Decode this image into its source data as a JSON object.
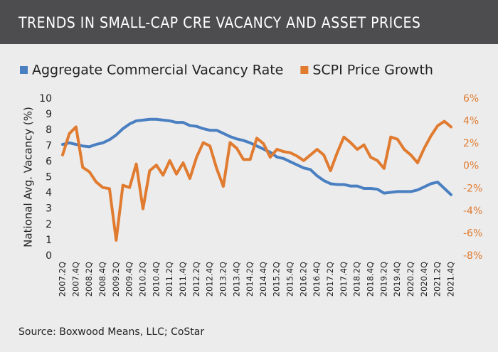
{
  "chart_data": {
    "type": "line",
    "title": "TRENDS IN SMALL-CAP CRE VACANCY AND ASSET PRICES",
    "ylabel": "National Avg. Vacancy (%)",
    "source": "Source: Boxwood Means, LLC; CoStar",
    "categories": [
      "2007.2Q",
      null,
      "2007.4Q",
      null,
      "2008.2Q",
      null,
      "2008.4Q",
      null,
      "2009.2Q",
      null,
      "2009.4Q",
      null,
      "2010.2Q",
      null,
      "2010.4Q",
      null,
      "2011.2Q",
      null,
      "2011.4Q",
      null,
      "2012.2Q",
      null,
      "2012.4Q",
      null,
      "2013.2Q",
      null,
      "2013.4Q",
      null,
      "2014.2Q",
      null,
      "2014.4Q",
      null,
      "2015.2Q",
      null,
      "2015.4Q",
      null,
      "2016.2Q",
      null,
      "2016.4Q",
      null,
      "2017.2Q",
      null,
      "2017.4Q",
      null,
      "2018.2Q",
      null,
      "2018.4Q",
      null,
      "2019.2Q",
      null,
      "2019.4Q",
      null,
      "2020.2Q",
      null,
      "2020.4Q",
      null,
      "2021.2Q",
      null,
      "2021.4Q"
    ],
    "series": [
      {
        "name": "Aggregate Commercial Vacancy Rate",
        "color": "#4a7fc1",
        "values": [
          7.1,
          7.2,
          7.1,
          7.0,
          6.95,
          7.1,
          7.2,
          7.4,
          7.7,
          8.1,
          8.4,
          8.6,
          8.65,
          8.7,
          8.7,
          8.65,
          8.6,
          8.5,
          8.5,
          8.3,
          8.25,
          8.1,
          8.0,
          8.0,
          7.8,
          7.6,
          7.45,
          7.35,
          7.2,
          7.0,
          6.8,
          6.6,
          6.3,
          6.2,
          6.0,
          5.8,
          5.6,
          5.5,
          5.1,
          4.8,
          4.6,
          4.55,
          4.55,
          4.45,
          4.45,
          4.3,
          4.3,
          4.25,
          4.0,
          4.05,
          4.1,
          4.1,
          4.1,
          4.2,
          4.4,
          4.6,
          4.7,
          4.3,
          3.9
        ]
      },
      {
        "name": "SCPI Price Growth",
        "color": "#e07b30",
        "axis": "y2",
        "values": [
          1.0,
          2.9,
          3.5,
          -0.1,
          -0.5,
          -1.4,
          -1.9,
          -2.0,
          -6.6,
          -1.7,
          -1.9,
          0.2,
          -3.8,
          -0.4,
          0.1,
          -0.8,
          0.5,
          -0.7,
          0.3,
          -1.1,
          0.8,
          2.1,
          1.8,
          -0.2,
          -1.8,
          2.1,
          1.6,
          0.6,
          0.6,
          2.5,
          2.0,
          0.8,
          1.5,
          1.3,
          1.2,
          0.9,
          0.5,
          1.0,
          1.5,
          1.0,
          -0.4,
          1.2,
          2.6,
          2.1,
          1.5,
          1.9,
          0.8,
          0.5,
          -0.2,
          2.6,
          2.4,
          1.5,
          1.0,
          0.3,
          1.6,
          2.7,
          3.6,
          4.0,
          3.5
        ]
      }
    ],
    "ylim": [
      0,
      10
    ],
    "yticks": [
      0,
      1,
      2,
      3,
      4,
      5,
      6,
      7,
      8,
      9,
      10
    ],
    "y2lim": [
      -8,
      6
    ],
    "y2ticks": [
      {
        "value": -8,
        "label": "-8%"
      },
      {
        "value": -6,
        "label": "-6%"
      },
      {
        "value": -4,
        "label": "-4%"
      },
      {
        "value": -2,
        "label": "-2%"
      },
      {
        "value": 0,
        "label": "0%"
      },
      {
        "value": 2,
        "label": "2%"
      },
      {
        "value": 4,
        "label": "4%"
      },
      {
        "value": 6,
        "label": "6%"
      }
    ],
    "grid": false,
    "legend": "top"
  }
}
